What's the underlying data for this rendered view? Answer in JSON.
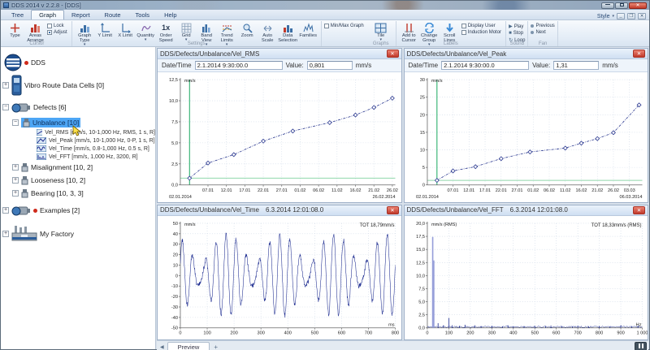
{
  "icons": {
    "dropdown": "▾",
    "close": "✕",
    "plus": "+",
    "minus": "−",
    "play": "▶",
    "stop": "■",
    "loop": "↻",
    "tab_scroll": "◀",
    "add_tab": "+",
    "window_min": "",
    "window_max": ""
  },
  "window": {
    "title": "DDS 2014 v 2.2.8 - [DDS]"
  },
  "ribbon": {
    "tabs": [
      "Tree",
      "Graph",
      "Report",
      "Route",
      "Tools",
      "Help"
    ],
    "selected_tab": "Graph",
    "style_button": "Style",
    "groups": [
      {
        "label": "Cursor",
        "buttons": [
          "Type",
          "Areas Arrange"
        ],
        "checks": [
          "Lock",
          "Adjust"
        ]
      },
      {
        "label": "Settings",
        "buttons": [
          "Graph Type",
          "Y Limit",
          "X Limit",
          "Quantity",
          "Order Speed",
          "Grid",
          "Band View",
          "Trend Limits",
          "Zoom",
          "Auto Scale",
          "Data Selection",
          "Families"
        ],
        "minmax": "Min/Max Graph"
      },
      {
        "label": "Graphs",
        "buttons": [
          "Tile"
        ]
      },
      {
        "label": "Labels",
        "buttons": [
          "Add to Cursor",
          "Change Group",
          "Scroll Lines"
        ],
        "checks": [
          "Display User",
          "Induction Motor"
        ]
      },
      {
        "label": "Sound",
        "buttons": [
          "Play",
          "Stop",
          "Loop"
        ]
      },
      {
        "label": "Fan",
        "buttons": [
          "Previous",
          "Next"
        ]
      }
    ]
  },
  "tree": {
    "root": "DDS",
    "items": {
      "route": "Vibro Route Data Cells [0]",
      "defects": "Defects [6]",
      "unbalance": "Unbalance [10]",
      "cells": [
        "Vel_RMS [mm/s, 10-1,000 Hz, RMS, 1 s, R]",
        "Vel_Peak [mm/s, 10-1,000 Hz, 0-P, 1 s, R]",
        "Vel_Time [mm/s, 0.8-1,000 Hz, 0.5 s, R]",
        "Vel_FFT [mm/s, 1,000 Hz, 3200, R]"
      ],
      "misalignment": "Misalignment [10, 2]",
      "looseness": "Looseness [10, 2]",
      "bearing": "Bearing [10, 3, 3]",
      "examples": "Examples [2]",
      "factory": "My Factory"
    }
  },
  "panels": [
    {
      "title": "DDS/Defects/Unbalance/Vel_RMS",
      "datetime_label": "Date/Time",
      "datetime": "2.1.2014 9:30:00.0",
      "value_label": "Value:",
      "value": "0,801",
      "unit": "mm/s"
    },
    {
      "title": "DDS/Defects/Unbalance/Vel_Peak",
      "datetime_label": "Date/Time",
      "datetime": "2.1.2014 9:30:00.0",
      "value_label": "Value:",
      "value": "1,31",
      "unit": "mm/s"
    },
    {
      "title": "DDS/Defects/Unbalance/Vel_Time",
      "datetime": "6.3.2014 12:01:08.0"
    },
    {
      "title": "DDS/Defects/Unbalance/Vel_FFT",
      "datetime": "6.3.2014 12:01:08.0"
    }
  ],
  "bottom_bar": {
    "tab": "Preview"
  },
  "chart_data": [
    {
      "type": "line",
      "subtype": "trend",
      "title": "DDS/Defects/Unbalance/Vel_RMS trend",
      "unit": "mm/s",
      "x_days": [
        0,
        5,
        12,
        20,
        28,
        38,
        45,
        50,
        55
      ],
      "values": [
        0.8,
        2.6,
        3.6,
        5.2,
        6.4,
        7.4,
        8.3,
        9.2,
        10.3
      ],
      "xlim": [
        -2.5,
        55.8
      ],
      "ylim": [
        0,
        12.5
      ],
      "yticks": [
        0,
        2.5,
        5,
        7.5,
        10,
        12.5
      ],
      "ytick_labels": [
        "0,0",
        "2,5",
        "5,0",
        "7,5",
        "10,0",
        "12,5"
      ],
      "xticks": [
        5,
        10,
        15,
        20,
        25,
        30,
        35,
        40,
        45,
        50,
        55
      ],
      "xtick_labels": [
        "07.01",
        "12.01",
        "17.01",
        "22.01",
        "27.01",
        "01.02",
        "06.02",
        "11.02",
        "16.02",
        "21.02",
        "26.02"
      ],
      "x_start_label": "02.01.2014",
      "x_end_label": "26.02.2014",
      "cursor": {
        "x": 0,
        "y": 0.8
      },
      "line_color": "#2b3990",
      "cursor_color": "#2db06e",
      "cursor_fill": "#90d8ab"
    },
    {
      "type": "line",
      "subtype": "trend",
      "title": "DDS/Defects/Unbalance/Vel_Peak trend",
      "unit": "mm/s",
      "x_days": [
        0,
        5,
        12,
        20,
        29,
        40,
        45,
        50,
        55,
        63
      ],
      "values": [
        1.3,
        4.0,
        5.2,
        7.5,
        9.4,
        10.5,
        11.9,
        13.2,
        14.9,
        22.8
      ],
      "xlim": [
        -3,
        64
      ],
      "ylim": [
        0,
        30
      ],
      "yticks": [
        0,
        5,
        10,
        15,
        20,
        25,
        30
      ],
      "ytick_labels": [
        "0",
        "5",
        "10",
        "15",
        "20",
        "25",
        "30"
      ],
      "xticks": [
        5,
        10,
        15,
        20,
        25,
        30,
        35,
        40,
        45,
        50,
        55,
        60
      ],
      "xtick_labels": [
        "07.01",
        "12.01",
        "17.01",
        "22.01",
        "27.01",
        "01.02",
        "06.02",
        "11.02",
        "16.02",
        "21.02",
        "26.02",
        "03.03"
      ],
      "x_start_label": "02.01.2014",
      "x_end_label": "06.03.2014",
      "cursor": {
        "x": 0,
        "y": 1.3
      },
      "line_color": "#2b3990",
      "cursor_color": "#2db06e",
      "cursor_fill": "#90d8ab"
    },
    {
      "type": "line",
      "subtype": "waveform",
      "title": "DDS/Defects/Unbalance/Vel_Time waveform",
      "unit": "mm/s",
      "x_unit": "ms",
      "tot_label": "TOT 18,79mm/s",
      "duration_ms": 800,
      "components": [
        {
          "freq_hz": 25,
          "amp": 24,
          "phase": 0
        },
        {
          "freq_hz": 30,
          "amp": 15,
          "phase": 0.8
        }
      ],
      "noise_amp": 2.5,
      "xlim": [
        0,
        800
      ],
      "ylim": [
        -50,
        50
      ],
      "yticks": [
        -50,
        -40,
        -30,
        -20,
        -10,
        0,
        10,
        20,
        30,
        40,
        50
      ],
      "ytick_labels": [
        "-50",
        "-40",
        "-30",
        "-20",
        "-10",
        "0",
        "10",
        "20",
        "30",
        "40",
        "50"
      ],
      "xticks": [
        0,
        100,
        200,
        300,
        400,
        500,
        600,
        700,
        800
      ],
      "xtick_labels": [
        "0",
        "100",
        "200",
        "300",
        "400",
        "500",
        "600",
        "700",
        "800"
      ],
      "line_color": "#1b2a8f"
    },
    {
      "type": "line",
      "subtype": "spectrum",
      "title": "DDS/Defects/Unbalance/Vel_FFT spectrum",
      "unit": "mm/s (RMS)",
      "x_unit": "Hz",
      "tot_label": "TOT 18,33mm/s (RMS)",
      "peaks": [
        [
          25,
          17.4
        ],
        [
          30,
          12.9
        ],
        [
          50,
          0.9
        ],
        [
          75,
          0.5
        ],
        [
          100,
          1.9
        ],
        [
          115,
          0.5
        ],
        [
          150,
          0.4
        ],
        [
          175,
          0.6
        ],
        [
          220,
          0.5
        ],
        [
          250,
          0.35
        ],
        [
          300,
          0.4
        ],
        [
          350,
          0.3
        ],
        [
          375,
          0.5
        ],
        [
          400,
          0.3
        ],
        [
          450,
          0.35
        ],
        [
          500,
          0.4
        ],
        [
          550,
          0.3
        ],
        [
          575,
          0.45
        ],
        [
          625,
          0.35
        ],
        [
          675,
          0.3
        ],
        [
          700,
          0.35
        ],
        [
          750,
          0.3
        ],
        [
          800,
          0.35
        ],
        [
          850,
          0.3
        ],
        [
          900,
          0.5
        ],
        [
          950,
          0.35
        ],
        [
          980,
          0.4
        ]
      ],
      "noise_amp": 0.35,
      "xlim": [
        0,
        1000
      ],
      "ylim": [
        0,
        20
      ],
      "yticks": [
        0,
        2.5,
        5,
        7.5,
        10,
        12.5,
        15,
        17.5,
        20
      ],
      "ytick_labels": [
        "0,0",
        "2,5",
        "5,0",
        "7,5",
        "10,0",
        "12,5",
        "15,0",
        "17,5",
        "20,0"
      ],
      "xticks": [
        0,
        100,
        200,
        300,
        400,
        500,
        600,
        700,
        800,
        900,
        1000
      ],
      "xtick_labels": [
        "0",
        "100",
        "200",
        "300",
        "400",
        "500",
        "600",
        "700",
        "800",
        "900",
        "1 000"
      ],
      "line_color": "#1b2a8f",
      "peak_highlight": "#959dd9"
    }
  ]
}
